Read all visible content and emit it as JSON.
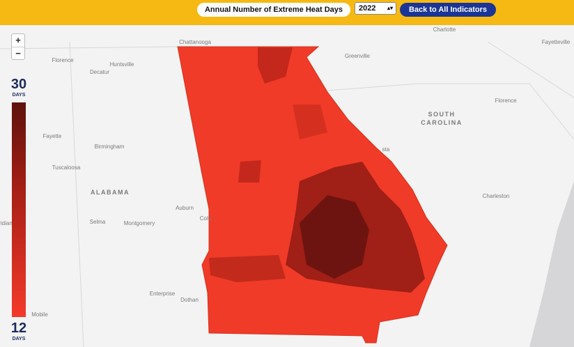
{
  "header": {
    "indicator": "Annual Number of Extreme Heat Days",
    "year": "2022",
    "back_button": "Back to All Indicators"
  },
  "legend": {
    "max": "30",
    "max_unit": "DAYS",
    "min": "12",
    "min_unit": "DAYS"
  },
  "zoom": {
    "in": "+",
    "out": "−"
  },
  "map_labels": [
    "Chattanooga",
    "Charlotte",
    "Florence",
    "Huntsville",
    "Decatur",
    "Greenville",
    "Fayetteville",
    "Fayette",
    "Birmingham",
    "Tuscaloosa",
    "ALABAMA",
    "Auburn",
    "Selma",
    "Montgomery",
    "Colu",
    "Enterprise",
    "Dothan",
    "Mobile",
    "SOUTH",
    "CAROLINA",
    "Florence",
    "Charleston",
    "sta",
    "ridian"
  ]
}
